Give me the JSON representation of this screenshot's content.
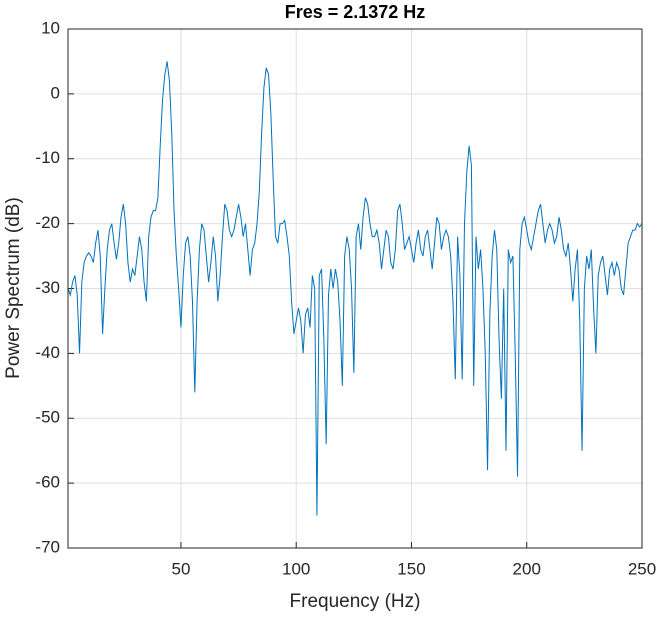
{
  "chart_data": {
    "type": "line",
    "title": "Fres = 2.1372 Hz",
    "xlabel": "Frequency (Hz)",
    "ylabel": "Power Spectrum (dB)",
    "color": "#0072bd",
    "grid": true,
    "xlim": [
      1,
      250
    ],
    "ylim": [
      -70,
      10
    ],
    "xticks": [
      50,
      100,
      150,
      200,
      250
    ],
    "yticks": [
      -70,
      -60,
      -50,
      -40,
      -30,
      -20,
      -10,
      0,
      10
    ],
    "x": [
      1,
      2,
      3,
      4,
      5,
      6,
      7,
      8,
      9,
      10,
      11,
      12,
      13,
      14,
      15,
      16,
      17,
      18,
      19,
      20,
      21,
      22,
      23,
      24,
      25,
      26,
      27,
      28,
      29,
      30,
      31,
      32,
      33,
      34,
      35,
      36,
      37,
      38,
      39,
      40,
      41,
      42,
      43,
      44,
      45,
      46,
      47,
      48,
      49,
      50,
      51,
      52,
      53,
      54,
      55,
      56,
      57,
      58,
      59,
      60,
      61,
      62,
      63,
      64,
      65,
      66,
      67,
      68,
      69,
      70,
      71,
      72,
      73,
      74,
      75,
      76,
      77,
      78,
      79,
      80,
      81,
      82,
      83,
      84,
      85,
      86,
      87,
      88,
      89,
      90,
      91,
      92,
      93,
      94,
      95,
      96,
      97,
      98,
      99,
      100,
      101,
      102,
      103,
      104,
      105,
      106,
      107,
      108,
      109,
      110,
      111,
      112,
      113,
      114,
      115,
      116,
      117,
      118,
      119,
      120,
      121,
      122,
      123,
      124,
      125,
      126,
      127,
      128,
      129,
      130,
      131,
      132,
      133,
      134,
      135,
      136,
      137,
      138,
      139,
      140,
      141,
      142,
      143,
      144,
      145,
      146,
      147,
      148,
      149,
      150,
      151,
      152,
      153,
      154,
      155,
      156,
      157,
      158,
      159,
      160,
      161,
      162,
      163,
      164,
      165,
      166,
      167,
      168,
      169,
      170,
      171,
      172,
      173,
      174,
      175,
      176,
      177,
      178,
      179,
      180,
      181,
      182,
      183,
      184,
      185,
      186,
      187,
      188,
      189,
      190,
      191,
      192,
      193,
      194,
      195,
      196,
      197,
      198,
      199,
      200,
      201,
      202,
      203,
      204,
      205,
      206,
      207,
      208,
      209,
      210,
      211,
      212,
      213,
      214,
      215,
      216,
      217,
      218,
      219,
      220,
      221,
      222,
      223,
      224,
      225,
      226,
      227,
      228,
      229,
      230,
      231,
      232,
      233,
      234,
      235,
      236,
      237,
      238,
      239,
      240,
      241,
      242,
      243,
      244,
      245,
      246,
      247,
      248,
      249,
      250
    ],
    "values": [
      -30,
      -31,
      -29,
      -28,
      -31,
      -40,
      -29,
      -26,
      -25,
      -24.5,
      -25,
      -26,
      -23,
      -21,
      -25,
      -37,
      -30,
      -24,
      -21,
      -20,
      -23,
      -25.5,
      -23,
      -19,
      -17,
      -20,
      -26,
      -29,
      -27,
      -28,
      -25,
      -22,
      -24,
      -29,
      -32,
      -22,
      -19,
      -18,
      -18,
      -16,
      -8,
      -1,
      3,
      5,
      2,
      -6,
      -18,
      -25,
      -30,
      -36,
      -28,
      -23,
      -22,
      -25,
      -32,
      -46,
      -32,
      -24,
      -20,
      -21,
      -25,
      -29,
      -26,
      -22,
      -25,
      -32,
      -28,
      -22,
      -17,
      -18,
      -21,
      -22,
      -21,
      -19,
      -17,
      -19,
      -22,
      -20,
      -24,
      -28,
      -24,
      -23,
      -20,
      -15,
      -6,
      1,
      4,
      3,
      -3,
      -13,
      -22,
      -23,
      -20,
      -20,
      -19.5,
      -22,
      -25,
      -32,
      -37,
      -35,
      -33,
      -35,
      -40,
      -34,
      -33,
      -36,
      -28,
      -30,
      -65,
      -28,
      -27,
      -38,
      -54,
      -31,
      -27,
      -30,
      -27,
      -29,
      -35,
      -45,
      -25,
      -22,
      -24,
      -30,
      -43,
      -22,
      -20,
      -24,
      -19,
      -16,
      -17,
      -20,
      -22,
      -22,
      -21,
      -23,
      -27,
      -24,
      -21,
      -22,
      -26,
      -27,
      -24,
      -18,
      -17,
      -20,
      -24,
      -23,
      -22,
      -24,
      -26,
      -23,
      -21,
      -24,
      -25,
      -22,
      -21,
      -24,
      -27,
      -23,
      -19,
      -20,
      -24,
      -22,
      -21,
      -22,
      -25,
      -32,
      -44,
      -22,
      -28,
      -44,
      -20,
      -12,
      -8,
      -11,
      -45,
      -22,
      -27,
      -24,
      -30,
      -40,
      -58,
      -34,
      -25,
      -21,
      -24,
      -38,
      -47,
      -30,
      -55,
      -24,
      -26,
      -25,
      -40,
      -59,
      -24,
      -20,
      -19,
      -21,
      -23,
      -24,
      -22,
      -20,
      -18,
      -17,
      -20,
      -23,
      -21,
      -20,
      -21,
      -23,
      -22,
      -19,
      -21,
      -24,
      -25,
      -23,
      -27,
      -32,
      -27,
      -24,
      -35,
      -55,
      -30,
      -25,
      -27,
      -24,
      -33,
      -40,
      -28,
      -26,
      -25,
      -28,
      -31,
      -27,
      -26,
      -28,
      -26,
      -27,
      -30,
      -31,
      -27,
      -23,
      -22,
      -21,
      -21,
      -20,
      -20.5,
      -20
    ]
  }
}
